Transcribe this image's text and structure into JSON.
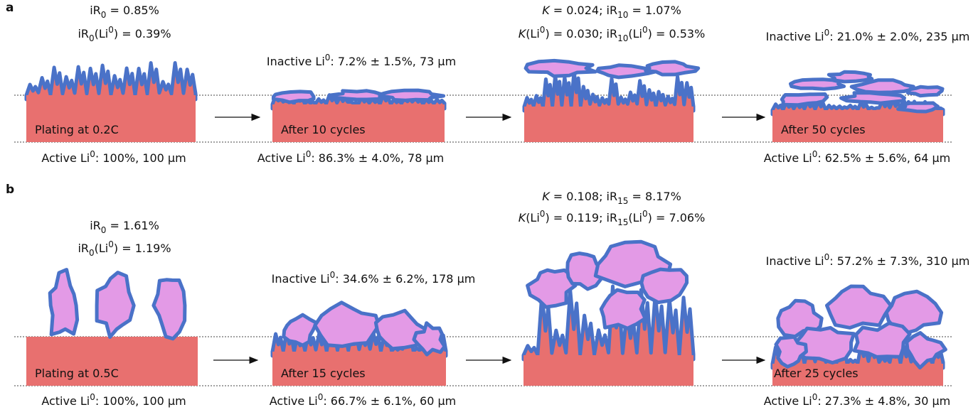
{
  "panels": [
    {
      "label": "a",
      "stages": [
        {
          "top": [
            [
              "iR",
              {
                "text": "0",
                "style": "sub"
              },
              " = 0.85%"
            ],
            [
              "iR",
              {
                "text": "0",
                "style": "sub"
              },
              "(Li",
              {
                "text": "0",
                "style": "sup"
              },
              ") = 0.39%"
            ]
          ],
          "caption": "Plating at 0.2C",
          "bottom": [
            "Active Li",
            {
              "text": "0",
              "style": "sup"
            },
            ": 100%, 100 μm"
          ]
        },
        {
          "top": [
            [
              "Inactive Li",
              {
                "text": "0",
                "style": "sup"
              },
              ": 7.2% ± 1.5%, 73 μm"
            ]
          ],
          "caption": "After 10 cycles",
          "bottom": [
            "Active Li",
            {
              "text": "0",
              "style": "sup"
            },
            ": 86.3% ± 4.0%, 78 μm"
          ]
        },
        {
          "top": [
            [
              {
                "text": "K",
                "style": "italic"
              },
              " = 0.024; iR",
              {
                "text": "10",
                "style": "sub"
              },
              " = 1.07%"
            ],
            [
              {
                "text": "K",
                "style": "italic"
              },
              "(Li",
              {
                "text": "0",
                "style": "sup"
              },
              ") = 0.030; iR",
              {
                "text": "10",
                "style": "sub"
              },
              "(Li",
              {
                "text": "0",
                "style": "sup"
              },
              ") = 0.53%"
            ]
          ]
        },
        {
          "top": [
            [
              "Inactive Li",
              {
                "text": "0",
                "style": "sup"
              },
              ": 21.0% ± 2.0%, 235 μm"
            ]
          ],
          "caption": "After 50 cycles",
          "bottom": [
            "Active Li",
            {
              "text": "0",
              "style": "sup"
            },
            ": 62.5% ± 5.6%, 64 μm"
          ]
        }
      ]
    },
    {
      "label": "b",
      "stages": [
        {
          "top": [
            [
              "iR",
              {
                "text": "0",
                "style": "sub"
              },
              " = 1.61%"
            ],
            [
              "iR",
              {
                "text": "0",
                "style": "sub"
              },
              "(Li",
              {
                "text": "0",
                "style": "sup"
              },
              ") = 1.19%"
            ]
          ],
          "caption": "Plating at 0.5C",
          "bottom": [
            "Active Li",
            {
              "text": "0",
              "style": "sup"
            },
            ": 100%, 100 μm"
          ]
        },
        {
          "top": [
            [
              "Inactive Li",
              {
                "text": "0",
                "style": "sup"
              },
              ": 34.6% ± 6.2%, 178 μm"
            ]
          ],
          "caption": "After 15 cycles",
          "bottom": [
            "Active Li",
            {
              "text": "0",
              "style": "sup"
            },
            ": 66.7% ± 6.1%, 60 μm"
          ]
        },
        {
          "top": [
            [
              {
                "text": "K",
                "style": "italic"
              },
              " = 0.108; iR",
              {
                "text": "15",
                "style": "sub"
              },
              " = 8.17%"
            ],
            [
              {
                "text": "K",
                "style": "italic"
              },
              "(Li",
              {
                "text": "0",
                "style": "sup"
              },
              ") = 0.119; iR",
              {
                "text": "15",
                "style": "sub"
              },
              "(Li",
              {
                "text": "0",
                "style": "sup"
              },
              ") = 7.06%"
            ]
          ]
        },
        {
          "top": [
            [
              "Inactive Li",
              {
                "text": "0",
                "style": "sup"
              },
              ": 57.2% ± 7.3%, 310 μm"
            ]
          ],
          "caption": "After 25 cycles",
          "bottom": [
            "Active Li",
            {
              "text": "0",
              "style": "sup"
            },
            ": 27.3% ± 4.8%, 30 μm"
          ]
        }
      ]
    }
  ]
}
